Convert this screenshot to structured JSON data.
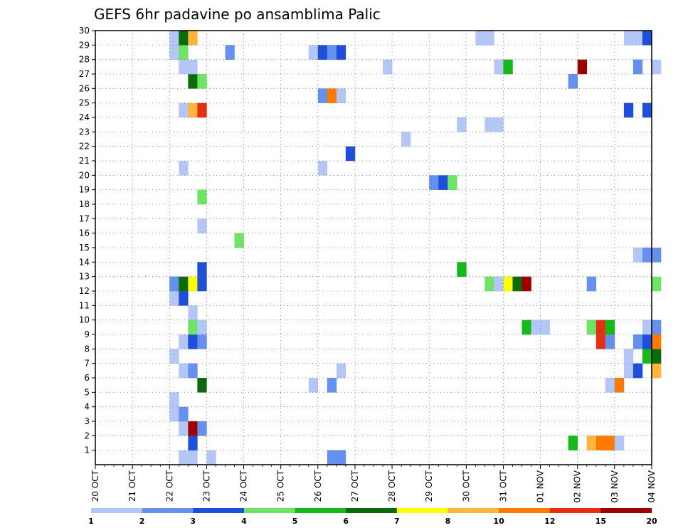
{
  "chart_data": {
    "type": "heatmap",
    "title": "GEFS 6hr padavine po ansamblima Palic",
    "x_labels": [
      "20 OCT",
      "21 OCT",
      "22 OCT",
      "23 OCT",
      "24 OCT",
      "25 OCT",
      "26 OCT",
      "27 OCT",
      "28 OCT",
      "29 OCT",
      "30 OCT",
      "31 OCT",
      "01 NOV",
      "02 NOV",
      "03 NOV",
      "04 NOV"
    ],
    "y_labels": [
      "1",
      "2",
      "3",
      "4",
      "5",
      "6",
      "7",
      "8",
      "9",
      "10",
      "11",
      "12",
      "13",
      "14",
      "15",
      "16",
      "17",
      "18",
      "19",
      "20",
      "21",
      "22",
      "23",
      "24",
      "25",
      "26",
      "27",
      "28",
      "29",
      "30"
    ],
    "y_range": [
      0,
      30
    ],
    "x_range": [
      "20 OCT 00Z",
      "04 NOV 00Z"
    ],
    "step_hours": 6,
    "grid": true,
    "colorbar": {
      "ticks": [
        "1",
        "2",
        "3",
        "4",
        "5",
        "6",
        "7",
        "8",
        "10",
        "12",
        "15",
        "20"
      ],
      "colors": [
        "#b3c6f5",
        "#6690ee",
        "#1e4fdb",
        "#6ee466",
        "#15b91a",
        "#0b6b0b",
        "#ffff00",
        "#ffb43c",
        "#ff7a00",
        "#e62f12",
        "#9e0000"
      ]
    },
    "cells": [
      [
        9,
        0,
        0
      ],
      [
        10,
        0,
        0
      ],
      [
        12,
        0,
        0
      ],
      [
        25,
        0,
        1
      ],
      [
        26,
        0,
        1
      ],
      [
        10,
        1,
        2
      ],
      [
        51,
        1,
        4
      ],
      [
        53,
        1,
        7
      ],
      [
        54,
        1,
        8
      ],
      [
        55,
        1,
        8
      ],
      [
        56,
        1,
        0
      ],
      [
        9,
        2,
        0
      ],
      [
        10,
        2,
        10
      ],
      [
        11,
        2,
        1
      ],
      [
        8,
        3,
        0
      ],
      [
        9,
        3,
        1
      ],
      [
        8,
        4,
        0
      ],
      [
        11,
        5,
        5
      ],
      [
        23,
        5,
        0
      ],
      [
        25,
        5,
        1
      ],
      [
        55,
        5,
        0
      ],
      [
        56,
        5,
        8
      ],
      [
        9,
        6,
        0
      ],
      [
        10,
        6,
        1
      ],
      [
        26,
        6,
        0
      ],
      [
        57,
        6,
        0
      ],
      [
        58,
        6,
        2
      ],
      [
        60,
        6,
        7
      ],
      [
        8,
        7,
        0
      ],
      [
        57,
        7,
        0
      ],
      [
        59,
        7,
        4
      ],
      [
        60,
        7,
        5
      ],
      [
        9,
        8,
        0
      ],
      [
        10,
        8,
        2
      ],
      [
        11,
        8,
        1
      ],
      [
        54,
        8,
        9
      ],
      [
        55,
        8,
        1
      ],
      [
        58,
        8,
        1
      ],
      [
        59,
        8,
        2
      ],
      [
        60,
        8,
        8
      ],
      [
        10,
        9,
        3
      ],
      [
        11,
        9,
        0
      ],
      [
        46,
        9,
        4
      ],
      [
        47,
        9,
        0
      ],
      [
        48,
        9,
        0
      ],
      [
        53,
        9,
        3
      ],
      [
        54,
        9,
        9
      ],
      [
        55,
        9,
        4
      ],
      [
        59,
        9,
        0
      ],
      [
        60,
        9,
        1
      ],
      [
        10,
        10,
        0
      ],
      [
        8,
        11,
        0
      ],
      [
        9,
        11,
        2
      ],
      [
        8,
        12,
        1
      ],
      [
        9,
        12,
        5
      ],
      [
        10,
        12,
        6
      ],
      [
        11,
        12,
        2
      ],
      [
        42,
        12,
        3
      ],
      [
        43,
        12,
        0
      ],
      [
        44,
        12,
        6
      ],
      [
        45,
        12,
        5
      ],
      [
        46,
        12,
        10
      ],
      [
        53,
        12,
        1
      ],
      [
        60,
        12,
        3
      ],
      [
        11,
        13,
        2
      ],
      [
        39,
        13,
        4
      ],
      [
        58,
        14,
        0
      ],
      [
        59,
        14,
        1
      ],
      [
        60,
        14,
        1
      ],
      [
        15,
        15,
        3
      ],
      [
        11,
        16,
        0
      ],
      [
        11,
        18,
        3
      ],
      [
        36,
        19,
        1
      ],
      [
        37,
        19,
        2
      ],
      [
        38,
        19,
        3
      ],
      [
        9,
        20,
        0
      ],
      [
        24,
        20,
        0
      ],
      [
        27,
        21,
        2
      ],
      [
        33,
        22,
        0
      ],
      [
        39,
        23,
        0
      ],
      [
        42,
        23,
        0
      ],
      [
        43,
        23,
        0
      ],
      [
        9,
        24,
        0
      ],
      [
        10,
        24,
        7
      ],
      [
        11,
        24,
        9
      ],
      [
        57,
        24,
        2
      ],
      [
        59,
        24,
        2
      ],
      [
        24,
        25,
        1
      ],
      [
        25,
        25,
        8
      ],
      [
        26,
        25,
        0
      ],
      [
        10,
        26,
        5
      ],
      [
        11,
        26,
        3
      ],
      [
        51,
        26,
        1
      ],
      [
        9,
        27,
        0
      ],
      [
        10,
        27,
        0
      ],
      [
        31,
        27,
        0
      ],
      [
        43,
        27,
        0
      ],
      [
        44,
        27,
        4
      ],
      [
        52,
        27,
        10
      ],
      [
        58,
        27,
        1
      ],
      [
        60,
        27,
        0
      ],
      [
        8,
        28,
        0
      ],
      [
        9,
        28,
        3
      ],
      [
        14,
        28,
        1
      ],
      [
        23,
        28,
        0
      ],
      [
        24,
        28,
        2
      ],
      [
        25,
        28,
        1
      ],
      [
        26,
        28,
        2
      ],
      [
        8,
        29,
        0
      ],
      [
        9,
        29,
        5
      ],
      [
        10,
        29,
        7
      ],
      [
        41,
        29,
        0
      ],
      [
        42,
        29,
        0
      ],
      [
        57,
        29,
        0
      ],
      [
        58,
        29,
        0
      ],
      [
        59,
        29,
        2
      ]
    ]
  }
}
